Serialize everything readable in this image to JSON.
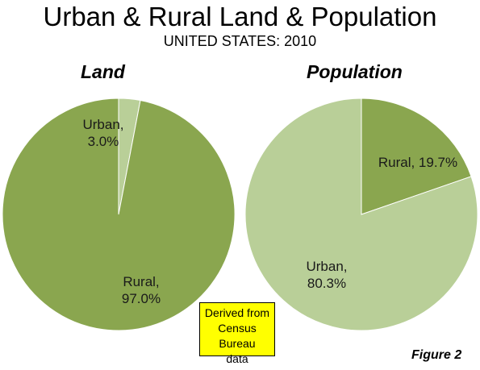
{
  "title": "Urban & Rural Land & Population",
  "subtitle": "UNITED STATES: 2010",
  "note": [
    "Derived from",
    "Census Bureau",
    "data"
  ],
  "figure_label": "Figure 2",
  "colors": {
    "dark_green": "#8aa64f",
    "light_green": "#b9cf98"
  },
  "chart_data": [
    {
      "type": "pie",
      "title": "Land",
      "slices": [
        {
          "name": "Urban",
          "value": 3.0,
          "label_lines": [
            "Urban,",
            "3.0%"
          ],
          "color": "#b9cf98"
        },
        {
          "name": "Rural",
          "value": 97.0,
          "label_lines": [
            "Rural,",
            "97.0%"
          ],
          "color": "#8aa64f"
        }
      ]
    },
    {
      "type": "pie",
      "title": "Population",
      "slices": [
        {
          "name": "Rural",
          "value": 19.7,
          "label_lines": [
            "Rural, 19.7%"
          ],
          "color": "#8aa64f"
        },
        {
          "name": "Urban",
          "value": 80.3,
          "label_lines": [
            "Urban,",
            "80.3%"
          ],
          "color": "#b9cf98"
        }
      ]
    }
  ]
}
